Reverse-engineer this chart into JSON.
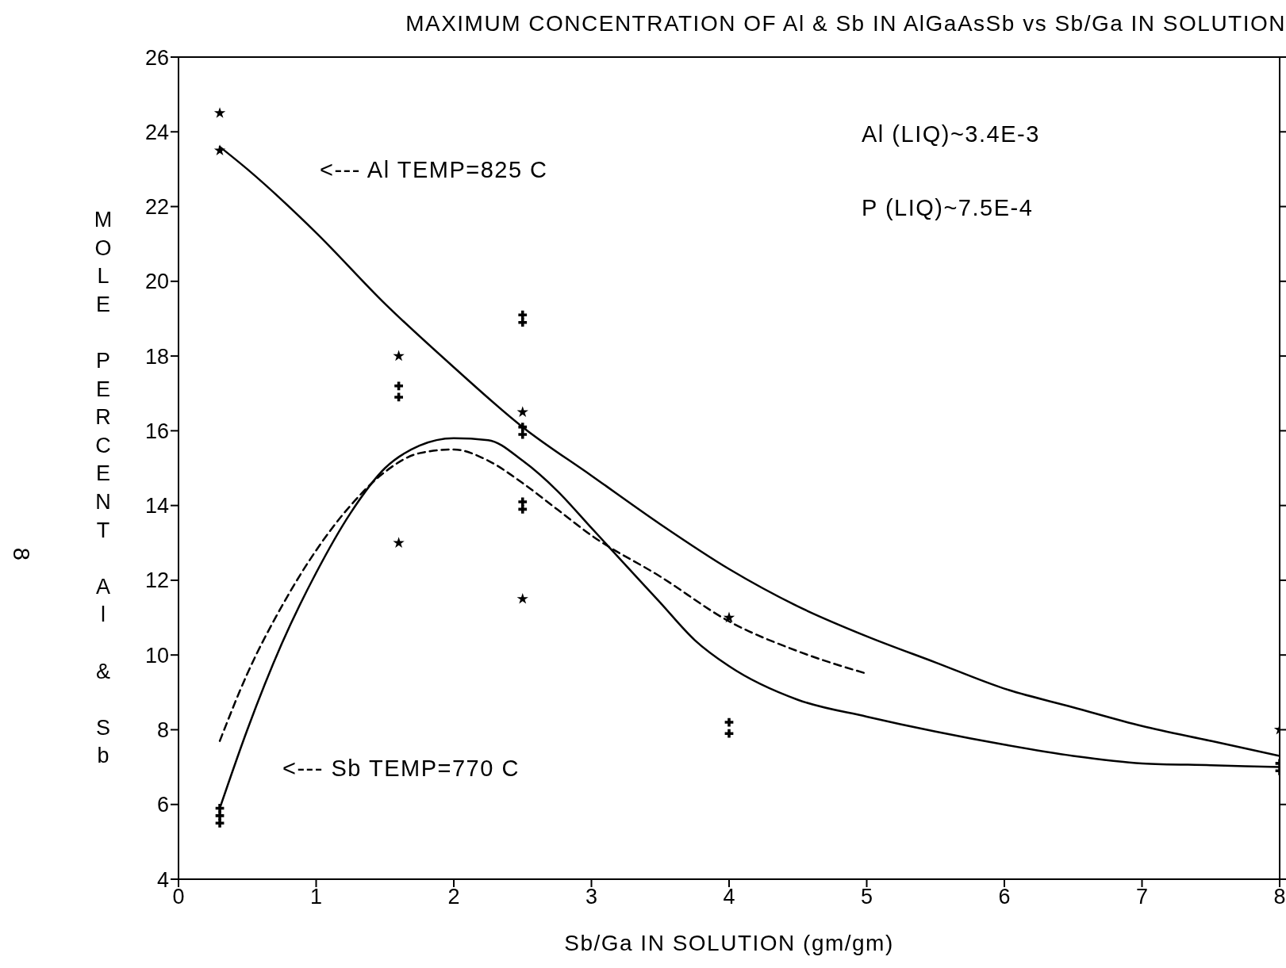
{
  "chart_data": {
    "type": "scatter",
    "title": "MAXIMUM CONCENTRATION OF Al & Sb IN AlGaAsSb vs Sb/Ga IN SOLUTION",
    "xlabel": "Sb/Ga IN SOLUTION  (gm/gm)",
    "ylabel": "MOLE PERCENT Al & Sb",
    "annotations": [
      "<--- Al TEMP=825 C",
      "<--- Sb TEMP=770 C",
      "Al (LIQ)~3.4E-3",
      "P (LIQ)~7.5E-4",
      "8"
    ],
    "xlim": [
      0,
      8
    ],
    "xticks": [
      0,
      1,
      2,
      3,
      4,
      5,
      6,
      7,
      8
    ],
    "ylim": [
      4,
      26
    ],
    "yticks": [
      4,
      6,
      8,
      10,
      12,
      14,
      16,
      18,
      20,
      22,
      24,
      26
    ],
    "series": [
      {
        "marker": "star",
        "color": "#000000",
        "x": [
          0.3,
          0.3,
          1.6,
          1.6,
          2.5,
          2.5,
          4,
          8
        ],
        "values": [
          24.5,
          23.5,
          18,
          13,
          16.5,
          11.5,
          11,
          8
        ]
      },
      {
        "marker": "cross",
        "color": "#000000",
        "x": [
          0.3,
          0.3,
          0.3,
          1.6,
          1.6,
          2.5,
          2.5,
          2.5,
          2.5,
          2.5,
          2.5,
          4,
          4,
          8,
          8
        ],
        "values": [
          5.9,
          5.7,
          5.5,
          17.2,
          16.9,
          19.1,
          18.9,
          16.1,
          15.9,
          14.1,
          13.9,
          8.2,
          7.9,
          7.1,
          6.9
        ]
      },
      {
        "type": "line",
        "line_style": "solid",
        "color": "#000000",
        "x": [
          0.3,
          0.5,
          1,
          1.5,
          2,
          2.5,
          3,
          3.5,
          4,
          4.5,
          5,
          5.5,
          6,
          6.5,
          7,
          7.5,
          8
        ],
        "values": [
          23.6,
          23,
          21.3,
          19.4,
          17.7,
          16.1,
          14.8,
          13.5,
          12.3,
          11.3,
          10.5,
          9.8,
          9.1,
          8.6,
          8.1,
          7.7,
          7.3
        ]
      },
      {
        "type": "line",
        "line_style": "solid",
        "color": "#000000",
        "x": [
          0.3,
          0.5,
          0.75,
          1,
          1.25,
          1.5,
          1.75,
          2,
          2.25,
          2.5,
          2.75,
          3,
          3.25,
          3.5,
          3.75,
          4,
          4.5,
          5,
          5.5,
          6,
          6.5,
          7,
          7.5,
          8
        ],
        "values": [
          5.9,
          8,
          10.3,
          12.2,
          13.8,
          15,
          15.6,
          15.8,
          15.75,
          15.2,
          14.4,
          13.4,
          12.4,
          11.4,
          10.4,
          9.7,
          8.8,
          8.35,
          7.95,
          7.6,
          7.3,
          7.1,
          7.05,
          7
        ]
      },
      {
        "type": "line",
        "line_style": "dashed",
        "color": "#000000",
        "x": [
          0.3,
          0.5,
          0.75,
          1,
          1.25,
          1.5,
          1.75,
          2,
          2.25,
          2.5,
          2.75,
          3,
          3.5,
          4,
          4.5,
          5
        ],
        "values": [
          7.7,
          9.5,
          11.3,
          12.8,
          14,
          14.9,
          15.4,
          15.5,
          15.2,
          14.6,
          13.9,
          13.2,
          12.1,
          10.9,
          10.1,
          9.5
        ]
      }
    ]
  }
}
